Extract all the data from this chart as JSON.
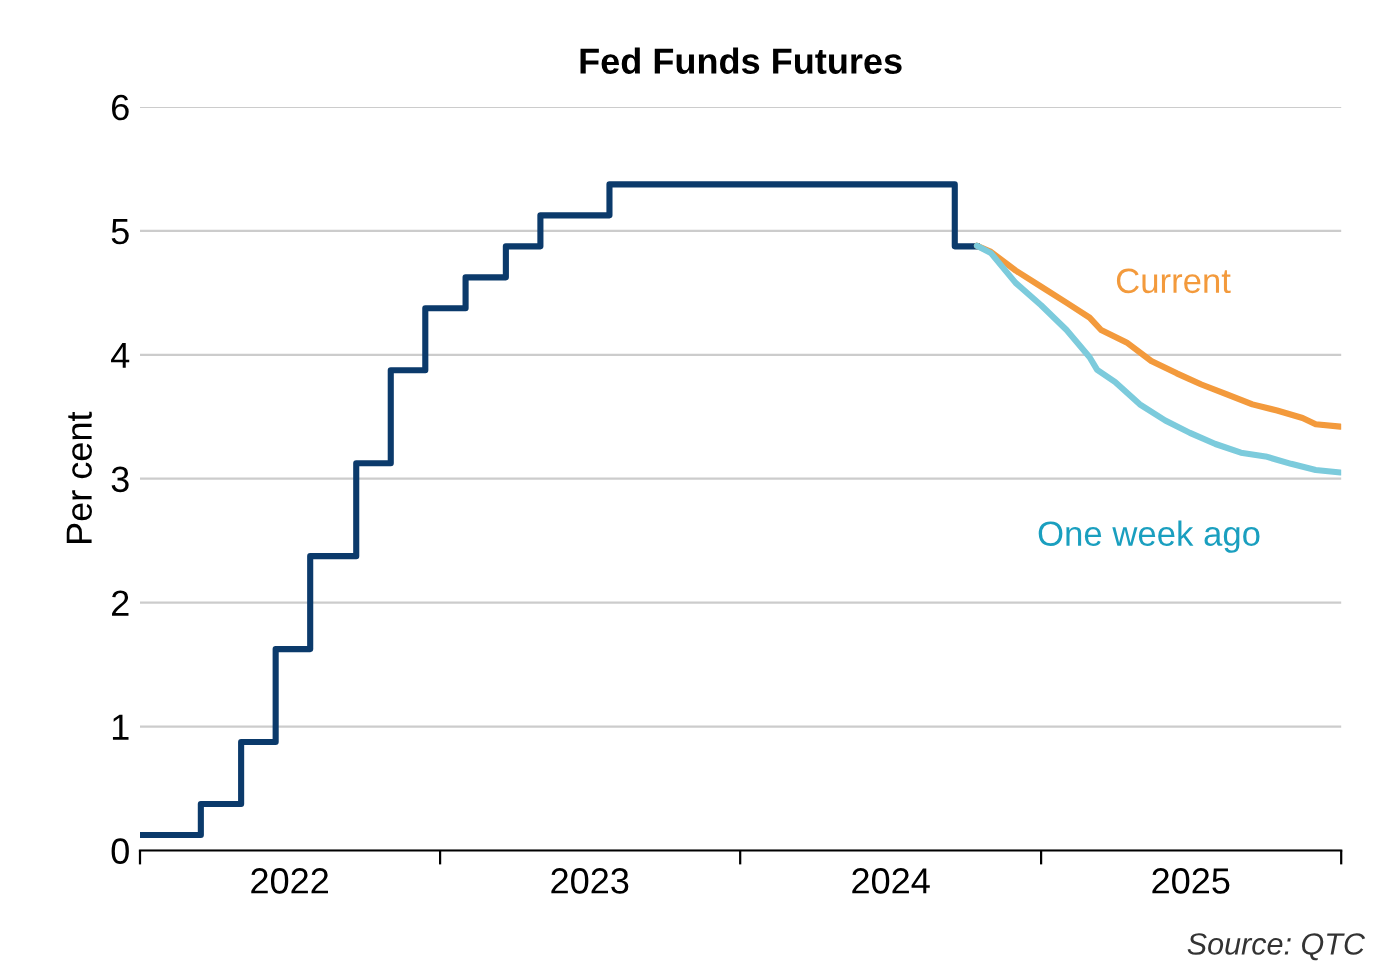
{
  "chart_data": {
    "type": "step",
    "title": "Fed Funds Futures",
    "ylabel": "Per cent",
    "annotations": [
      "Source: QTC"
    ],
    "xlim": [
      "2022-01-01",
      "2026-01-01"
    ],
    "xticks": [
      {
        "value": "2022-01-01",
        "label": null
      },
      {
        "value": "2022-07-02",
        "label": "2022"
      },
      {
        "value": "2023-01-01",
        "label": null
      },
      {
        "value": "2023-07-02",
        "label": "2023"
      },
      {
        "value": "2024-01-01",
        "label": null
      },
      {
        "value": "2024-07-02",
        "label": "2024"
      },
      {
        "value": "2025-01-01",
        "label": null
      },
      {
        "value": "2025-07-02",
        "label": "2025"
      },
      {
        "value": "2026-01-01",
        "label": null
      }
    ],
    "ylim": [
      0,
      6
    ],
    "yticks": [
      0,
      1,
      2,
      3,
      4,
      5,
      6
    ],
    "grid": "y",
    "legend": false,
    "series": [
      {
        "color": "#0b3a6b",
        "x": [
          "2022-01-01",
          "2022-03-16",
          "2022-05-04",
          "2022-06-15",
          "2022-07-27",
          "2022-09-21",
          "2022-11-02",
          "2022-12-14",
          "2023-02-01",
          "2023-03-22",
          "2023-05-03",
          "2023-07-26",
          "2024-09-18",
          "2024-10-15"
        ],
        "values": [
          0.125,
          0.375,
          0.875,
          1.625,
          2.375,
          3.125,
          3.875,
          4.375,
          4.625,
          4.875,
          5.125,
          5.375,
          4.875,
          4.875
        ]
      },
      {
        "type": "line",
        "name": "Current",
        "color": "#f39a3c",
        "x": [
          "2024-10-15",
          "2024-11-01",
          "2024-12-01",
          "2025-01-01",
          "2025-02-01",
          "2025-03-01",
          "2025-03-15",
          "2025-04-15",
          "2025-05-15",
          "2025-06-15",
          "2025-07-15",
          "2025-08-15",
          "2025-09-15",
          "2025-10-15",
          "2025-11-15",
          "2025-12-01",
          "2025-12-31"
        ],
        "values": [
          4.88,
          4.83,
          4.68,
          4.55,
          4.42,
          4.3,
          4.2,
          4.1,
          3.95,
          3.85,
          3.76,
          3.68,
          3.6,
          3.55,
          3.49,
          3.44,
          3.42
        ]
      },
      {
        "type": "line",
        "name": "One week ago",
        "color": "#7ccbdc",
        "x": [
          "2024-10-15",
          "2024-11-01",
          "2024-12-01",
          "2025-01-01",
          "2025-02-01",
          "2025-03-01",
          "2025-03-10",
          "2025-04-01",
          "2025-05-01",
          "2025-06-01",
          "2025-07-01",
          "2025-08-01",
          "2025-09-01",
          "2025-10-01",
          "2025-11-01",
          "2025-12-01",
          "2025-12-31"
        ],
        "values": [
          4.88,
          4.82,
          4.58,
          4.4,
          4.2,
          3.98,
          3.88,
          3.78,
          3.6,
          3.47,
          3.37,
          3.28,
          3.21,
          3.18,
          3.12,
          3.07,
          3.05
        ]
      }
    ]
  }
}
